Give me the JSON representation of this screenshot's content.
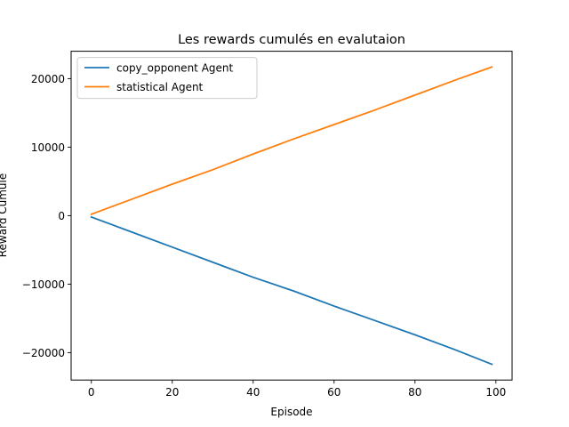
{
  "chart_data": {
    "type": "line",
    "title": "Les rewards cumulés en evalutaion",
    "xlabel": "Episode",
    "ylabel": "Reward Cumulé",
    "xlim": [
      -5,
      104
    ],
    "ylim": [
      -24000,
      24000
    ],
    "xticks": [
      0,
      20,
      40,
      60,
      80,
      100
    ],
    "yticks": [
      -20000,
      -10000,
      0,
      10000,
      20000
    ],
    "xtick_labels": [
      "0",
      "20",
      "40",
      "60",
      "80",
      "100"
    ],
    "ytick_labels": [
      "−20000",
      "−10000",
      "0",
      "10000",
      "20000"
    ],
    "grid": false,
    "legend_position": "top-left",
    "x": [
      0,
      10,
      20,
      30,
      40,
      50,
      60,
      70,
      80,
      90,
      99
    ],
    "series": [
      {
        "name": "copy_opponent Agent",
        "color": "#1f77b4",
        "values": [
          -200,
          -2400,
          -4600,
          -6800,
          -9000,
          -11000,
          -13200,
          -15300,
          -17400,
          -19600,
          -21700
        ]
      },
      {
        "name": "statistical Agent",
        "color": "#ff7f0e",
        "values": [
          200,
          2400,
          4600,
          6700,
          9000,
          11200,
          13300,
          15400,
          17600,
          19800,
          21700
        ]
      }
    ]
  }
}
